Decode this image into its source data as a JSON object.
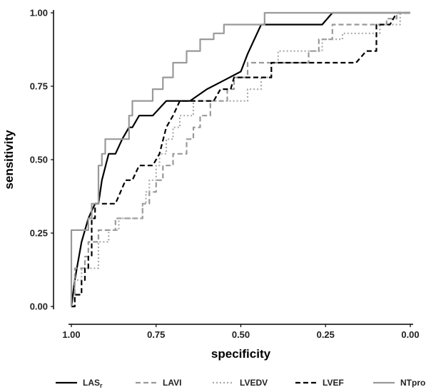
{
  "chart_data": {
    "type": "line",
    "title": "",
    "xlabel": "specificity",
    "ylabel": "sensitivity",
    "x_reversed": true,
    "xlim": [
      1.0,
      0.0
    ],
    "ylim": [
      0.0,
      1.0
    ],
    "x_ticks": [
      "1.00",
      "0.75",
      "0.50",
      "0.25",
      "0.00"
    ],
    "y_ticks": [
      "0.00",
      "0.25",
      "0.50",
      "0.75",
      "1.00"
    ],
    "grid": false,
    "legend_position": "bottom",
    "series": [
      {
        "name": "LAS",
        "name_subscript": "r",
        "color": "#000000",
        "dash": "solid",
        "points": [
          [
            1.0,
            0.0
          ],
          [
            0.99,
            0.09
          ],
          [
            0.97,
            0.22
          ],
          [
            0.95,
            0.3
          ],
          [
            0.93,
            0.35
          ],
          [
            0.92,
            0.35
          ],
          [
            0.91,
            0.43
          ],
          [
            0.89,
            0.52
          ],
          [
            0.87,
            0.52
          ],
          [
            0.85,
            0.57
          ],
          [
            0.83,
            0.61
          ],
          [
            0.82,
            0.61
          ],
          [
            0.8,
            0.65
          ],
          [
            0.76,
            0.65
          ],
          [
            0.72,
            0.7
          ],
          [
            0.65,
            0.7
          ],
          [
            0.6,
            0.74
          ],
          [
            0.55,
            0.77
          ],
          [
            0.5,
            0.8
          ],
          [
            0.48,
            0.86
          ],
          [
            0.46,
            0.91
          ],
          [
            0.44,
            0.96
          ],
          [
            0.26,
            0.96
          ],
          [
            0.23,
            1.0
          ],
          [
            0.0,
            1.0
          ]
        ]
      },
      {
        "name": "LAVI",
        "color": "#999999",
        "dash": "dashed",
        "points": [
          [
            1.0,
            0.0
          ],
          [
            0.99,
            0.0
          ],
          [
            0.99,
            0.13
          ],
          [
            0.96,
            0.13
          ],
          [
            0.96,
            0.17
          ],
          [
            0.95,
            0.17
          ],
          [
            0.95,
            0.22
          ],
          [
            0.92,
            0.22
          ],
          [
            0.92,
            0.26
          ],
          [
            0.87,
            0.26
          ],
          [
            0.87,
            0.3
          ],
          [
            0.79,
            0.3
          ],
          [
            0.79,
            0.35
          ],
          [
            0.77,
            0.35
          ],
          [
            0.77,
            0.39
          ],
          [
            0.75,
            0.39
          ],
          [
            0.75,
            0.43
          ],
          [
            0.73,
            0.43
          ],
          [
            0.73,
            0.48
          ],
          [
            0.7,
            0.48
          ],
          [
            0.7,
            0.52
          ],
          [
            0.66,
            0.52
          ],
          [
            0.66,
            0.57
          ],
          [
            0.64,
            0.57
          ],
          [
            0.64,
            0.61
          ],
          [
            0.62,
            0.61
          ],
          [
            0.62,
            0.65
          ],
          [
            0.59,
            0.65
          ],
          [
            0.59,
            0.7
          ],
          [
            0.54,
            0.7
          ],
          [
            0.54,
            0.74
          ],
          [
            0.52,
            0.74
          ],
          [
            0.52,
            0.78
          ],
          [
            0.48,
            0.78
          ],
          [
            0.48,
            0.83
          ],
          [
            0.3,
            0.83
          ],
          [
            0.3,
            0.87
          ],
          [
            0.27,
            0.87
          ],
          [
            0.27,
            0.91
          ],
          [
            0.23,
            0.91
          ],
          [
            0.23,
            0.96
          ],
          [
            0.07,
            0.96
          ],
          [
            0.07,
            0.98
          ],
          [
            0.04,
            0.98
          ],
          [
            0.04,
            1.0
          ],
          [
            0.0,
            1.0
          ]
        ]
      },
      {
        "name": "LVEDV",
        "color": "#aaaaaa",
        "dash": "dotted",
        "points": [
          [
            1.0,
            0.0
          ],
          [
            0.99,
            0.0
          ],
          [
            0.99,
            0.09
          ],
          [
            0.97,
            0.09
          ],
          [
            0.97,
            0.13
          ],
          [
            0.92,
            0.13
          ],
          [
            0.92,
            0.22
          ],
          [
            0.89,
            0.22
          ],
          [
            0.89,
            0.26
          ],
          [
            0.86,
            0.26
          ],
          [
            0.86,
            0.3
          ],
          [
            0.79,
            0.3
          ],
          [
            0.79,
            0.35
          ],
          [
            0.78,
            0.35
          ],
          [
            0.78,
            0.39
          ],
          [
            0.77,
            0.39
          ],
          [
            0.77,
            0.43
          ],
          [
            0.75,
            0.43
          ],
          [
            0.75,
            0.48
          ],
          [
            0.74,
            0.48
          ],
          [
            0.74,
            0.52
          ],
          [
            0.72,
            0.52
          ],
          [
            0.72,
            0.57
          ],
          [
            0.7,
            0.57
          ],
          [
            0.7,
            0.61
          ],
          [
            0.68,
            0.61
          ],
          [
            0.68,
            0.65
          ],
          [
            0.64,
            0.65
          ],
          [
            0.64,
            0.7
          ],
          [
            0.48,
            0.7
          ],
          [
            0.48,
            0.74
          ],
          [
            0.44,
            0.74
          ],
          [
            0.44,
            0.78
          ],
          [
            0.41,
            0.78
          ],
          [
            0.41,
            0.83
          ],
          [
            0.39,
            0.83
          ],
          [
            0.39,
            0.87
          ],
          [
            0.26,
            0.87
          ],
          [
            0.26,
            0.91
          ],
          [
            0.2,
            0.91
          ],
          [
            0.2,
            0.93
          ],
          [
            0.09,
            0.93
          ],
          [
            0.09,
            0.96
          ],
          [
            0.03,
            0.96
          ],
          [
            0.03,
            1.0
          ],
          [
            0.0,
            1.0
          ]
        ]
      },
      {
        "name": "LVEF",
        "color": "#000000",
        "dash": "dashed",
        "points": [
          [
            1.0,
            0.0
          ],
          [
            0.99,
            0.0
          ],
          [
            0.99,
            0.04
          ],
          [
            0.97,
            0.04
          ],
          [
            0.97,
            0.09
          ],
          [
            0.96,
            0.09
          ],
          [
            0.96,
            0.13
          ],
          [
            0.95,
            0.13
          ],
          [
            0.95,
            0.17
          ],
          [
            0.94,
            0.17
          ],
          [
            0.94,
            0.3
          ],
          [
            0.93,
            0.3
          ],
          [
            0.93,
            0.35
          ],
          [
            0.87,
            0.35
          ],
          [
            0.84,
            0.43
          ],
          [
            0.82,
            0.43
          ],
          [
            0.8,
            0.48
          ],
          [
            0.76,
            0.48
          ],
          [
            0.74,
            0.52
          ],
          [
            0.72,
            0.61
          ],
          [
            0.7,
            0.65
          ],
          [
            0.68,
            0.7
          ],
          [
            0.58,
            0.7
          ],
          [
            0.56,
            0.74
          ],
          [
            0.53,
            0.74
          ],
          [
            0.52,
            0.78
          ],
          [
            0.41,
            0.78
          ],
          [
            0.41,
            0.83
          ],
          [
            0.16,
            0.83
          ],
          [
            0.13,
            0.87
          ],
          [
            0.1,
            0.87
          ],
          [
            0.1,
            0.96
          ],
          [
            0.06,
            0.96
          ],
          [
            0.04,
            1.0
          ],
          [
            0.0,
            1.0
          ]
        ]
      },
      {
        "name": "NTproBNP",
        "color": "#999999",
        "dash": "solid",
        "points": [
          [
            1.0,
            0.0
          ],
          [
            1.0,
            0.26
          ],
          [
            0.95,
            0.26
          ],
          [
            0.95,
            0.3
          ],
          [
            0.94,
            0.3
          ],
          [
            0.94,
            0.35
          ],
          [
            0.92,
            0.35
          ],
          [
            0.92,
            0.48
          ],
          [
            0.91,
            0.48
          ],
          [
            0.91,
            0.52
          ],
          [
            0.9,
            0.52
          ],
          [
            0.9,
            0.57
          ],
          [
            0.83,
            0.57
          ],
          [
            0.83,
            0.65
          ],
          [
            0.82,
            0.65
          ],
          [
            0.82,
            0.7
          ],
          [
            0.76,
            0.7
          ],
          [
            0.76,
            0.74
          ],
          [
            0.73,
            0.74
          ],
          [
            0.73,
            0.78
          ],
          [
            0.7,
            0.78
          ],
          [
            0.7,
            0.83
          ],
          [
            0.66,
            0.83
          ],
          [
            0.66,
            0.87
          ],
          [
            0.62,
            0.87
          ],
          [
            0.62,
            0.91
          ],
          [
            0.58,
            0.91
          ],
          [
            0.58,
            0.93
          ],
          [
            0.55,
            0.93
          ],
          [
            0.55,
            0.96
          ],
          [
            0.43,
            0.96
          ],
          [
            0.43,
            1.0
          ],
          [
            0.0,
            1.0
          ]
        ]
      }
    ]
  }
}
